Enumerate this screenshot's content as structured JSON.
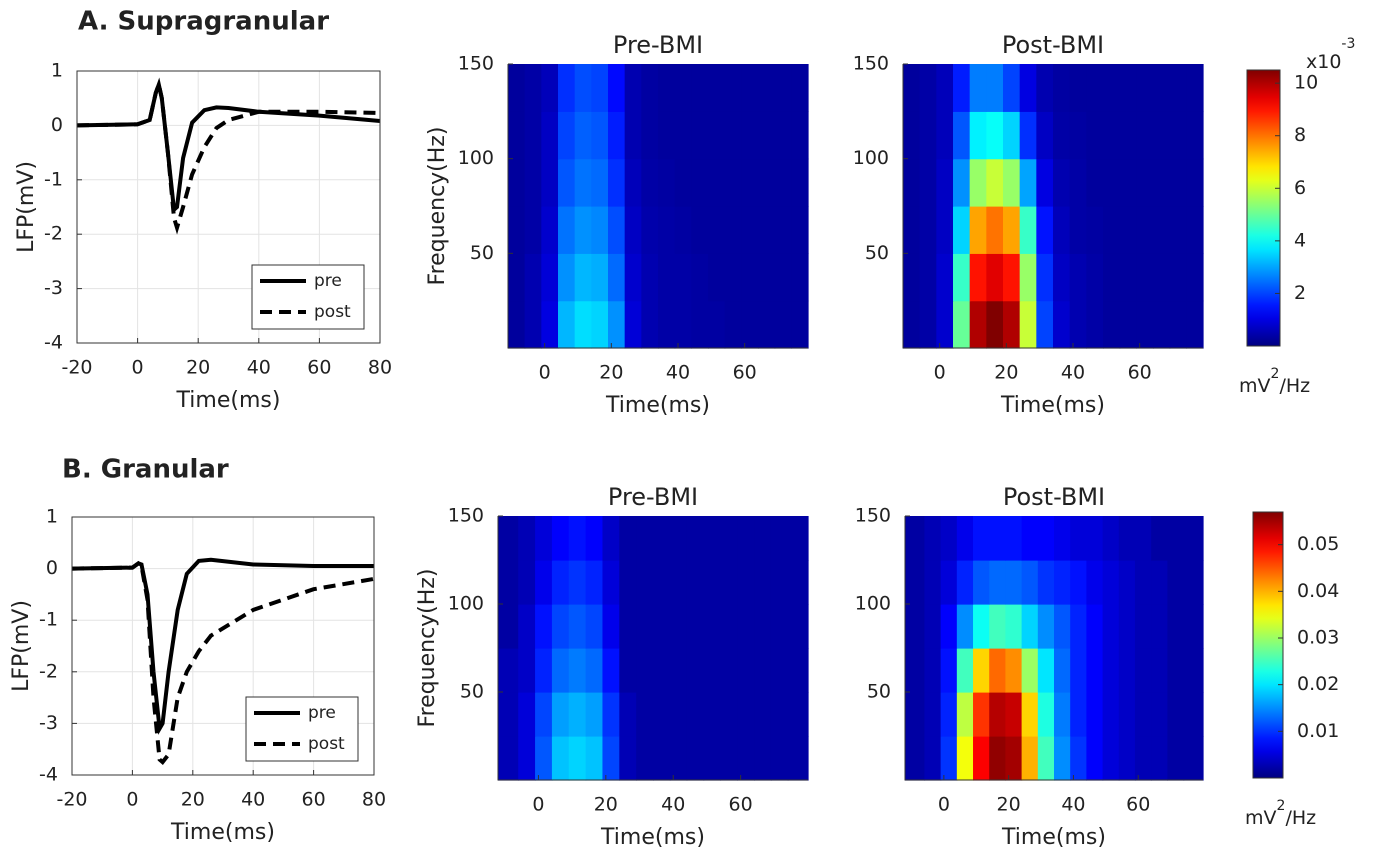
{
  "chart_data": [
    {
      "type": "line",
      "title": "A. Supragranular",
      "xlabel": "Time(ms)",
      "ylabel": "LFP(mV)",
      "x": [
        -20,
        0,
        4,
        6,
        7,
        8,
        10,
        12,
        13,
        15,
        18,
        22,
        26,
        30,
        40,
        60,
        80
      ],
      "series": [
        {
          "name": "pre",
          "color": "#000000",
          "style": "solid",
          "values": [
            0,
            0.02,
            0.1,
            0.6,
            0.75,
            0.5,
            -0.5,
            -1.55,
            -1.5,
            -0.6,
            0.05,
            0.28,
            0.33,
            0.32,
            0.25,
            0.18,
            0.08
          ]
        },
        {
          "name": "post",
          "color": "#000000",
          "style": "dashed",
          "values": [
            0,
            0.02,
            0.1,
            0.6,
            0.75,
            0.5,
            -0.5,
            -1.7,
            -1.88,
            -1.5,
            -0.9,
            -0.4,
            -0.05,
            0.1,
            0.25,
            0.25,
            0.23
          ]
        }
      ],
      "xlim": [
        -20,
        80
      ],
      "xticks": [
        -20,
        0,
        20,
        40,
        60,
        80
      ],
      "ylim": [
        -4,
        1
      ],
      "yticks": [
        -4,
        -3,
        -2,
        -1,
        0,
        1
      ],
      "grid": true,
      "legend": "lower right"
    },
    {
      "type": "heatmap",
      "title": "Pre-BMI",
      "xlabel": "Time(ms)",
      "ylabel": "Frequency(Hz)",
      "x": [
        -8.5,
        -3.5,
        1.5,
        6.5,
        11.5,
        16.5,
        21.5,
        26.5,
        31.5,
        36.5,
        41.5,
        46.5,
        51.5,
        56.5,
        61.5,
        66.5,
        71.5,
        76.5
      ],
      "y": [
        12.5,
        37.5,
        62.5,
        87.5,
        112.5,
        137.5
      ],
      "values": [
        [
          0.3,
          0.5,
          1.0,
          3.2,
          3.6,
          3.5,
          2.8,
          0.9,
          0.5,
          0.4,
          0.4,
          0.35,
          0.35,
          0.3,
          0.3,
          0.3,
          0.3,
          0.3
        ],
        [
          0.3,
          0.5,
          0.9,
          2.8,
          3.2,
          3.1,
          2.4,
          0.8,
          0.5,
          0.4,
          0.4,
          0.35,
          0.3,
          0.3,
          0.3,
          0.3,
          0.3,
          0.3
        ],
        [
          0.3,
          0.4,
          0.8,
          2.5,
          2.8,
          2.7,
          2.1,
          0.7,
          0.45,
          0.4,
          0.35,
          0.3,
          0.3,
          0.3,
          0.3,
          0.3,
          0.3,
          0.3
        ],
        [
          0.3,
          0.4,
          0.7,
          2.2,
          2.5,
          2.4,
          1.8,
          0.6,
          0.4,
          0.35,
          0.3,
          0.3,
          0.3,
          0.3,
          0.3,
          0.3,
          0.3,
          0.3
        ],
        [
          0.3,
          0.4,
          0.7,
          2.0,
          2.3,
          2.2,
          1.6,
          0.5,
          0.35,
          0.3,
          0.3,
          0.3,
          0.3,
          0.3,
          0.3,
          0.3,
          0.3,
          0.3
        ],
        [
          0.3,
          0.4,
          0.6,
          1.8,
          2.1,
          2.0,
          1.4,
          0.5,
          0.35,
          0.3,
          0.3,
          0.3,
          0.3,
          0.3,
          0.3,
          0.3,
          0.3,
          0.3
        ]
      ],
      "clim": [
        0,
        10.5
      ],
      "xlim": [
        -11,
        79
      ],
      "xticks": [
        0,
        20,
        40,
        60
      ],
      "ylim": [
        0,
        150
      ],
      "yticks": [
        50,
        100,
        150
      ]
    },
    {
      "type": "heatmap",
      "title": "Post-BMI",
      "xlabel": "Time(ms)",
      "x": [
        -8.5,
        -3.5,
        1.5,
        6.5,
        11.5,
        16.5,
        21.5,
        26.5,
        31.5,
        36.5,
        41.5,
        46.5,
        51.5,
        56.5,
        61.5,
        66.5,
        71.5,
        76.5
      ],
      "y": [
        12.5,
        37.5,
        62.5,
        87.5,
        112.5,
        137.5
      ],
      "values": [
        [
          0.3,
          0.4,
          0.8,
          5,
          10,
          10.5,
          10,
          6,
          2,
          0.8,
          0.5,
          0.4,
          0.3,
          0.3,
          0.3,
          0.3,
          0.3,
          0.3
        ],
        [
          0.3,
          0.4,
          0.8,
          4.5,
          9,
          9.5,
          9,
          5.5,
          1.8,
          0.7,
          0.5,
          0.4,
          0.3,
          0.3,
          0.3,
          0.3,
          0.3,
          0.3
        ],
        [
          0.3,
          0.4,
          0.7,
          3.5,
          7.5,
          8,
          7.5,
          4.5,
          1.5,
          0.6,
          0.4,
          0.35,
          0.3,
          0.3,
          0.3,
          0.3,
          0.3,
          0.3
        ],
        [
          0.3,
          0.4,
          0.7,
          2.8,
          5.5,
          6,
          5.5,
          3,
          1.0,
          0.5,
          0.4,
          0.3,
          0.3,
          0.3,
          0.3,
          0.3,
          0.3,
          0.3
        ],
        [
          0.3,
          0.4,
          0.6,
          2.2,
          3.8,
          4,
          3.5,
          1.8,
          0.7,
          0.4,
          0.35,
          0.3,
          0.3,
          0.3,
          0.3,
          0.3,
          0.3,
          0.3
        ],
        [
          0.3,
          0.4,
          0.6,
          1.6,
          2.6,
          2.6,
          2,
          1,
          0.5,
          0.35,
          0.3,
          0.3,
          0.3,
          0.3,
          0.3,
          0.3,
          0.3,
          0.3
        ]
      ],
      "clim": [
        0,
        10.5
      ],
      "xlim": [
        -11,
        79
      ],
      "xticks": [
        0,
        20,
        40,
        60
      ],
      "ylim": [
        0,
        150
      ],
      "yticks": [
        50,
        100,
        150
      ],
      "colorbar": {
        "ticks": [
          2,
          4,
          6,
          8,
          10
        ],
        "exponent": {
          "base": "x10",
          "sup": "-3"
        },
        "label": {
          "base": "mV",
          "sup": "2",
          "rest": "/Hz"
        }
      }
    },
    {
      "type": "line",
      "title": "B. Granular",
      "xlabel": "Time(ms)",
      "ylabel": "LFP(mV)",
      "x": [
        -20,
        0,
        2,
        3,
        5,
        7,
        9,
        10,
        12,
        15,
        18,
        22,
        26,
        40,
        60,
        80
      ],
      "series": [
        {
          "name": "pre",
          "color": "#000000",
          "style": "solid",
          "values": [
            0,
            0.02,
            0.1,
            0.08,
            -0.5,
            -2,
            -3.1,
            -3.0,
            -2,
            -0.8,
            -0.1,
            0.15,
            0.17,
            0.08,
            0.05,
            0.05
          ]
        },
        {
          "name": "post",
          "color": "#000000",
          "style": "dashed",
          "values": [
            0,
            0.02,
            0.1,
            0.05,
            -0.6,
            -2.5,
            -3.7,
            -3.75,
            -3.6,
            -2.5,
            -2,
            -1.6,
            -1.3,
            -0.8,
            -0.4,
            -0.2
          ]
        }
      ],
      "xlim": [
        -20,
        80
      ],
      "xticks": [
        -20,
        0,
        20,
        40,
        60,
        80
      ],
      "ylim": [
        -4,
        1
      ],
      "yticks": [
        -4,
        -3,
        -2,
        -1,
        0,
        1
      ],
      "grid": true,
      "legend": "lower right"
    },
    {
      "type": "heatmap",
      "title": "Pre-BMI",
      "xlabel": "Time(ms)",
      "ylabel": "Frequency(Hz)",
      "x": [
        -8.5,
        -3.5,
        1.5,
        6.5,
        11.5,
        16.5,
        21.5,
        26.5,
        31.5,
        36.5,
        41.5,
        46.5,
        51.5,
        56.5,
        61.5,
        66.5,
        71.5,
        76.5
      ],
      "y": [
        12.5,
        37.5,
        62.5,
        87.5,
        112.5,
        137.5
      ],
      "values": [
        [
          0.003,
          0.005,
          0.012,
          0.018,
          0.019,
          0.018,
          0.011,
          0.003,
          0.002,
          0.002,
          0.002,
          0.002,
          0.002,
          0.002,
          0.002,
          0.002,
          0.002,
          0.002
        ],
        [
          0.003,
          0.005,
          0.011,
          0.016,
          0.017,
          0.016,
          0.01,
          0.003,
          0.002,
          0.002,
          0.002,
          0.002,
          0.002,
          0.002,
          0.002,
          0.002,
          0.002,
          0.002
        ],
        [
          0.003,
          0.004,
          0.009,
          0.013,
          0.014,
          0.013,
          0.008,
          0.002,
          0.002,
          0.002,
          0.002,
          0.002,
          0.002,
          0.002,
          0.002,
          0.002,
          0.002,
          0.002
        ],
        [
          0.002,
          0.004,
          0.008,
          0.011,
          0.012,
          0.011,
          0.006,
          0.002,
          0.002,
          0.002,
          0.002,
          0.002,
          0.002,
          0.002,
          0.002,
          0.002,
          0.002,
          0.002
        ],
        [
          0.002,
          0.003,
          0.006,
          0.009,
          0.01,
          0.009,
          0.005,
          0.002,
          0.002,
          0.002,
          0.002,
          0.002,
          0.002,
          0.002,
          0.002,
          0.002,
          0.002,
          0.002
        ],
        [
          0.002,
          0.003,
          0.005,
          0.007,
          0.008,
          0.007,
          0.004,
          0.002,
          0.002,
          0.002,
          0.002,
          0.002,
          0.002,
          0.002,
          0.002,
          0.002,
          0.002,
          0.002
        ]
      ],
      "clim": [
        0,
        0.057
      ],
      "xlim": [
        -12,
        80
      ],
      "xticks": [
        0,
        20,
        40,
        60
      ],
      "ylim": [
        0,
        150
      ],
      "yticks": [
        50,
        100,
        150
      ]
    },
    {
      "type": "heatmap",
      "title": "Post-BMI",
      "xlabel": "Time(ms)",
      "x": [
        -8.5,
        -3.5,
        1.5,
        6.5,
        11.5,
        16.5,
        21.5,
        26.5,
        31.5,
        36.5,
        41.5,
        46.5,
        51.5,
        56.5,
        61.5,
        66.5,
        71.5,
        76.5
      ],
      "y": [
        12.5,
        37.5,
        62.5,
        87.5,
        112.5,
        137.5
      ],
      "values": [
        [
          0.002,
          0.003,
          0.01,
          0.035,
          0.05,
          0.056,
          0.055,
          0.04,
          0.025,
          0.015,
          0.01,
          0.007,
          0.005,
          0.004,
          0.003,
          0.003,
          0.002,
          0.002
        ],
        [
          0.002,
          0.003,
          0.009,
          0.032,
          0.047,
          0.054,
          0.053,
          0.038,
          0.023,
          0.014,
          0.009,
          0.007,
          0.005,
          0.004,
          0.003,
          0.003,
          0.002,
          0.002
        ],
        [
          0.002,
          0.003,
          0.008,
          0.025,
          0.038,
          0.044,
          0.042,
          0.03,
          0.02,
          0.013,
          0.009,
          0.007,
          0.005,
          0.004,
          0.003,
          0.003,
          0.002,
          0.002
        ],
        [
          0.002,
          0.003,
          0.007,
          0.015,
          0.022,
          0.025,
          0.024,
          0.019,
          0.015,
          0.012,
          0.009,
          0.007,
          0.005,
          0.004,
          0.003,
          0.003,
          0.002,
          0.002
        ],
        [
          0.002,
          0.003,
          0.005,
          0.009,
          0.012,
          0.013,
          0.013,
          0.012,
          0.01,
          0.009,
          0.008,
          0.006,
          0.005,
          0.004,
          0.003,
          0.003,
          0.002,
          0.002
        ],
        [
          0.002,
          0.003,
          0.004,
          0.006,
          0.008,
          0.008,
          0.008,
          0.007,
          0.007,
          0.006,
          0.005,
          0.005,
          0.004,
          0.003,
          0.003,
          0.002,
          0.002,
          0.002
        ]
      ],
      "clim": [
        0,
        0.057
      ],
      "xlim": [
        -12,
        80
      ],
      "xticks": [
        0,
        20,
        40,
        60
      ],
      "ylim": [
        0,
        150
      ],
      "yticks": [
        50,
        100,
        150
      ],
      "colorbar": {
        "ticks": [
          0.01,
          0.02,
          0.03,
          0.04,
          0.05
        ],
        "label": {
          "base": "mV",
          "sup": "2",
          "rest": "/Hz"
        }
      }
    }
  ]
}
